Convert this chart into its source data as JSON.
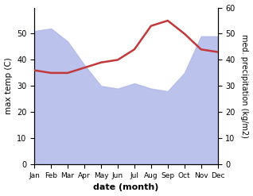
{
  "months": [
    "Jan",
    "Feb",
    "Mar",
    "Apr",
    "May",
    "Jun",
    "Jul",
    "Aug",
    "Sep",
    "Oct",
    "Nov",
    "Dec"
  ],
  "precipitation": [
    51,
    52,
    47,
    38,
    30,
    29,
    31,
    29,
    28,
    35,
    49,
    49
  ],
  "temperature": [
    36,
    35,
    35,
    37,
    39,
    40,
    44,
    53,
    55,
    50,
    44,
    43
  ],
  "precip_color": "#b0b8e8",
  "temp_color": "#c0393b",
  "ylabel_left": "max temp (C)",
  "ylabel_right": "med. precipitation (kg/m2)",
  "xlabel": "date (month)",
  "ylim_left": [
    0,
    60
  ],
  "ylim_right": [
    0,
    60
  ],
  "yticks_left": [
    0,
    10,
    20,
    30,
    40,
    50
  ],
  "yticks_right": [
    0,
    10,
    20,
    30,
    40,
    50,
    60
  ],
  "bg_color": "#ffffff"
}
